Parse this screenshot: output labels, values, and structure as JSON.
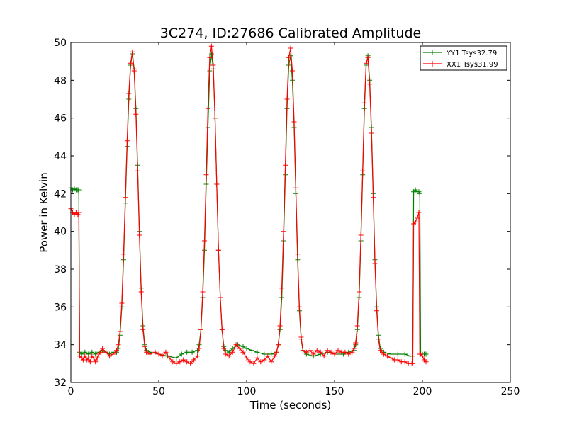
{
  "chart_data": {
    "type": "line",
    "title": "3C274, ID:27686 Calibrated Amplitude",
    "xlabel": "Time (seconds)",
    "ylabel": "Power in Kelvin",
    "xlim": [
      0,
      250
    ],
    "ylim": [
      32,
      50
    ],
    "xticks": [
      "0",
      "50",
      "100",
      "150",
      "200",
      "250"
    ],
    "yticks": [
      "32",
      "34",
      "36",
      "38",
      "40",
      "42",
      "44",
      "46",
      "48",
      "50"
    ],
    "grid": false,
    "legend_position": "top-right",
    "series": [
      {
        "name": "YY1 Tsys32.79",
        "color": "#008000",
        "marker": "+",
        "points": [
          [
            0,
            42.3
          ],
          [
            1,
            42.2
          ],
          [
            2,
            42.25
          ],
          [
            3,
            42.2
          ],
          [
            4,
            42.2
          ],
          [
            4.5,
            42.2
          ],
          [
            5,
            33.6
          ],
          [
            6,
            33.5
          ],
          [
            8,
            33.6
          ],
          [
            10,
            33.5
          ],
          [
            12,
            33.6
          ],
          [
            14,
            33.5
          ],
          [
            16,
            33.6
          ],
          [
            18,
            33.7
          ],
          [
            20,
            33.6
          ],
          [
            22,
            33.5
          ],
          [
            24,
            33.6
          ],
          [
            26,
            33.6
          ],
          [
            27,
            33.8
          ],
          [
            28,
            34.5
          ],
          [
            29,
            36.0
          ],
          [
            30,
            38.5
          ],
          [
            31,
            41.5
          ],
          [
            32,
            44.5
          ],
          [
            33,
            47.0
          ],
          [
            34,
            48.8
          ],
          [
            35,
            49.4
          ],
          [
            36,
            48.6
          ],
          [
            37,
            46.5
          ],
          [
            38,
            43.5
          ],
          [
            39,
            40.0
          ],
          [
            40,
            37.0
          ],
          [
            41,
            35.0
          ],
          [
            42,
            34.0
          ],
          [
            43,
            33.7
          ],
          [
            45,
            33.6
          ],
          [
            50,
            33.5
          ],
          [
            55,
            33.4
          ],
          [
            60,
            33.3
          ],
          [
            63,
            33.5
          ],
          [
            66,
            33.6
          ],
          [
            69,
            33.6
          ],
          [
            72,
            33.7
          ],
          [
            73,
            34.0
          ],
          [
            74,
            34.8
          ],
          [
            75,
            36.5
          ],
          [
            76,
            39.0
          ],
          [
            77,
            42.5
          ],
          [
            78,
            45.5
          ],
          [
            79,
            48.5
          ],
          [
            80,
            49.4
          ],
          [
            81,
            48.6
          ],
          [
            82,
            46.0
          ],
          [
            83,
            42.5
          ],
          [
            84,
            39.0
          ],
          [
            85,
            36.5
          ],
          [
            86,
            34.8
          ],
          [
            87,
            33.9
          ],
          [
            88,
            33.7
          ],
          [
            90,
            33.6
          ],
          [
            92,
            33.8
          ],
          [
            95,
            34.0
          ],
          [
            98,
            33.9
          ],
          [
            100,
            33.8
          ],
          [
            103,
            33.7
          ],
          [
            106,
            33.6
          ],
          [
            110,
            33.5
          ],
          [
            114,
            33.5
          ],
          [
            117,
            33.6
          ],
          [
            118,
            34.0
          ],
          [
            119,
            34.8
          ],
          [
            120,
            36.5
          ],
          [
            121,
            39.5
          ],
          [
            122,
            43.0
          ],
          [
            123,
            46.5
          ],
          [
            124,
            48.8
          ],
          [
            125,
            49.3
          ],
          [
            126,
            48.0
          ],
          [
            127,
            45.5
          ],
          [
            128,
            42.0
          ],
          [
            129,
            38.5
          ],
          [
            130,
            35.8
          ],
          [
            131,
            34.3
          ],
          [
            132,
            33.7
          ],
          [
            134,
            33.5
          ],
          [
            138,
            33.4
          ],
          [
            142,
            33.5
          ],
          [
            146,
            33.6
          ],
          [
            150,
            33.5
          ],
          [
            155,
            33.5
          ],
          [
            158,
            33.6
          ],
          [
            161,
            33.7
          ],
          [
            162,
            34.0
          ],
          [
            163,
            34.8
          ],
          [
            164,
            36.5
          ],
          [
            165,
            39.5
          ],
          [
            166,
            43.0
          ],
          [
            167,
            46.5
          ],
          [
            168,
            48.8
          ],
          [
            169,
            49.3
          ],
          [
            170,
            48.0
          ],
          [
            171,
            45.5
          ],
          [
            172,
            42.0
          ],
          [
            173,
            38.5
          ],
          [
            174,
            36.0
          ],
          [
            175,
            34.5
          ],
          [
            176,
            33.8
          ],
          [
            178,
            33.6
          ],
          [
            182,
            33.5
          ],
          [
            186,
            33.5
          ],
          [
            190,
            33.5
          ],
          [
            193,
            33.4
          ],
          [
            194.5,
            33.4
          ],
          [
            195,
            42.1
          ],
          [
            196,
            42.2
          ],
          [
            197,
            42.1
          ],
          [
            198,
            42.1
          ],
          [
            198.5,
            42.0
          ],
          [
            199,
            33.5
          ],
          [
            200,
            33.5
          ],
          [
            201,
            33.5
          ],
          [
            202,
            33.5
          ]
        ]
      },
      {
        "name": "XX1 Tsys31.99",
        "color": "#ff0000",
        "marker": "+",
        "points": [
          [
            0,
            41.2
          ],
          [
            1,
            41.0
          ],
          [
            2,
            40.9
          ],
          [
            3,
            41.0
          ],
          [
            4,
            40.9
          ],
          [
            4.5,
            41.0
          ],
          [
            5,
            33.4
          ],
          [
            6,
            33.3
          ],
          [
            7,
            33.2
          ],
          [
            8,
            33.4
          ],
          [
            9,
            33.2
          ],
          [
            10,
            33.3
          ],
          [
            11,
            33.1
          ],
          [
            12,
            33.4
          ],
          [
            13,
            33.3
          ],
          [
            14,
            33.1
          ],
          [
            15,
            33.3
          ],
          [
            16,
            33.5
          ],
          [
            17,
            33.6
          ],
          [
            18,
            33.8
          ],
          [
            20,
            33.6
          ],
          [
            22,
            33.4
          ],
          [
            24,
            33.5
          ],
          [
            26,
            33.7
          ],
          [
            27,
            34.0
          ],
          [
            28,
            34.7
          ],
          [
            29,
            36.2
          ],
          [
            30,
            38.8
          ],
          [
            31,
            41.8
          ],
          [
            32,
            44.8
          ],
          [
            33,
            47.3
          ],
          [
            34,
            48.9
          ],
          [
            35,
            49.5
          ],
          [
            36,
            48.5
          ],
          [
            37,
            46.2
          ],
          [
            38,
            43.2
          ],
          [
            39,
            39.8
          ],
          [
            40,
            36.8
          ],
          [
            41,
            34.8
          ],
          [
            42,
            33.9
          ],
          [
            43,
            33.6
          ],
          [
            45,
            33.5
          ],
          [
            48,
            33.6
          ],
          [
            50,
            33.5
          ],
          [
            52,
            33.4
          ],
          [
            54,
            33.6
          ],
          [
            56,
            33.3
          ],
          [
            58,
            33.1
          ],
          [
            60,
            33.0
          ],
          [
            62,
            33.1
          ],
          [
            64,
            33.2
          ],
          [
            66,
            33.1
          ],
          [
            68,
            33.0
          ],
          [
            70,
            33.2
          ],
          [
            72,
            33.4
          ],
          [
            73,
            33.8
          ],
          [
            74,
            34.8
          ],
          [
            75,
            36.8
          ],
          [
            76,
            39.5
          ],
          [
            77,
            43.0
          ],
          [
            78,
            46.5
          ],
          [
            79,
            49.2
          ],
          [
            80,
            49.8
          ],
          [
            81,
            48.8
          ],
          [
            82,
            46.0
          ],
          [
            83,
            42.5
          ],
          [
            84,
            39.0
          ],
          [
            85,
            36.5
          ],
          [
            86,
            34.8
          ],
          [
            87,
            33.8
          ],
          [
            88,
            33.5
          ],
          [
            90,
            33.4
          ],
          [
            92,
            33.6
          ],
          [
            94,
            34.0
          ],
          [
            96,
            33.8
          ],
          [
            98,
            33.6
          ],
          [
            100,
            33.3
          ],
          [
            102,
            33.1
          ],
          [
            104,
            33.0
          ],
          [
            106,
            33.3
          ],
          [
            108,
            33.1
          ],
          [
            110,
            33.2
          ],
          [
            112,
            33.4
          ],
          [
            114,
            33.1
          ],
          [
            116,
            33.4
          ],
          [
            117,
            33.6
          ],
          [
            118,
            34.0
          ],
          [
            119,
            35.0
          ],
          [
            120,
            37.0
          ],
          [
            121,
            40.0
          ],
          [
            122,
            43.5
          ],
          [
            123,
            47.0
          ],
          [
            124,
            49.2
          ],
          [
            125,
            49.7
          ],
          [
            126,
            48.5
          ],
          [
            127,
            45.8
          ],
          [
            128,
            42.3
          ],
          [
            129,
            38.8
          ],
          [
            130,
            36.0
          ],
          [
            131,
            34.4
          ],
          [
            132,
            33.7
          ],
          [
            134,
            33.6
          ],
          [
            136,
            33.7
          ],
          [
            138,
            33.5
          ],
          [
            140,
            33.7
          ],
          [
            142,
            33.6
          ],
          [
            144,
            33.4
          ],
          [
            146,
            33.7
          ],
          [
            148,
            33.6
          ],
          [
            150,
            33.5
          ],
          [
            152,
            33.7
          ],
          [
            154,
            33.6
          ],
          [
            156,
            33.6
          ],
          [
            158,
            33.5
          ],
          [
            160,
            33.6
          ],
          [
            161,
            33.8
          ],
          [
            162,
            34.1
          ],
          [
            163,
            35.0
          ],
          [
            164,
            36.8
          ],
          [
            165,
            39.8
          ],
          [
            166,
            43.2
          ],
          [
            167,
            46.8
          ],
          [
            168,
            48.9
          ],
          [
            169,
            49.2
          ],
          [
            170,
            47.8
          ],
          [
            171,
            45.2
          ],
          [
            172,
            41.8
          ],
          [
            173,
            38.3
          ],
          [
            174,
            35.8
          ],
          [
            175,
            34.3
          ],
          [
            176,
            33.7
          ],
          [
            178,
            33.5
          ],
          [
            180,
            33.4
          ],
          [
            182,
            33.3
          ],
          [
            184,
            33.2
          ],
          [
            186,
            33.2
          ],
          [
            188,
            33.1
          ],
          [
            190,
            33.1
          ],
          [
            192,
            33.0
          ],
          [
            194,
            33.0
          ],
          [
            194.5,
            33.0
          ],
          [
            195,
            40.4
          ],
          [
            196,
            40.5
          ],
          [
            197,
            40.7
          ],
          [
            198,
            41.0
          ],
          [
            198.5,
            33.5
          ],
          [
            199,
            33.5
          ],
          [
            200,
            33.4
          ],
          [
            201,
            33.2
          ],
          [
            202,
            33.1
          ]
        ]
      }
    ]
  }
}
